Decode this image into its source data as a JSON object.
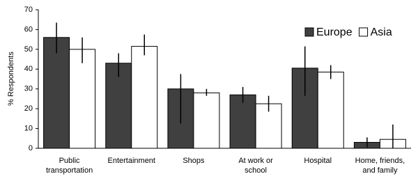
{
  "chart_data": {
    "type": "bar",
    "y_label": "% Respondents",
    "categories": [
      "Public transportation",
      "Entertainment",
      "Shops",
      "At work or school",
      "Hospital",
      "Home, friends, and family"
    ],
    "series": [
      {
        "name": "Europe",
        "color": "#404040",
        "values": [
          56,
          43,
          30,
          27,
          40.5,
          3
        ],
        "error_low": [
          8,
          7,
          17.5,
          4,
          14,
          2.5
        ],
        "error_high": [
          7.5,
          5,
          7.5,
          4,
          11,
          2.5
        ]
      },
      {
        "name": "Asia",
        "color": "#ffffff",
        "values": [
          50,
          51.5,
          28,
          22.5,
          38.5,
          4.5
        ],
        "error_low": [
          7,
          4.5,
          1.5,
          4,
          3.5,
          4.5
        ],
        "error_high": [
          6,
          6,
          2,
          4,
          3.5,
          7.5
        ]
      }
    ],
    "ylim": [
      0,
      70
    ],
    "yticks": [
      0,
      10,
      20,
      30,
      40,
      50,
      60,
      70
    ],
    "grid": false,
    "legend": "top-right"
  }
}
